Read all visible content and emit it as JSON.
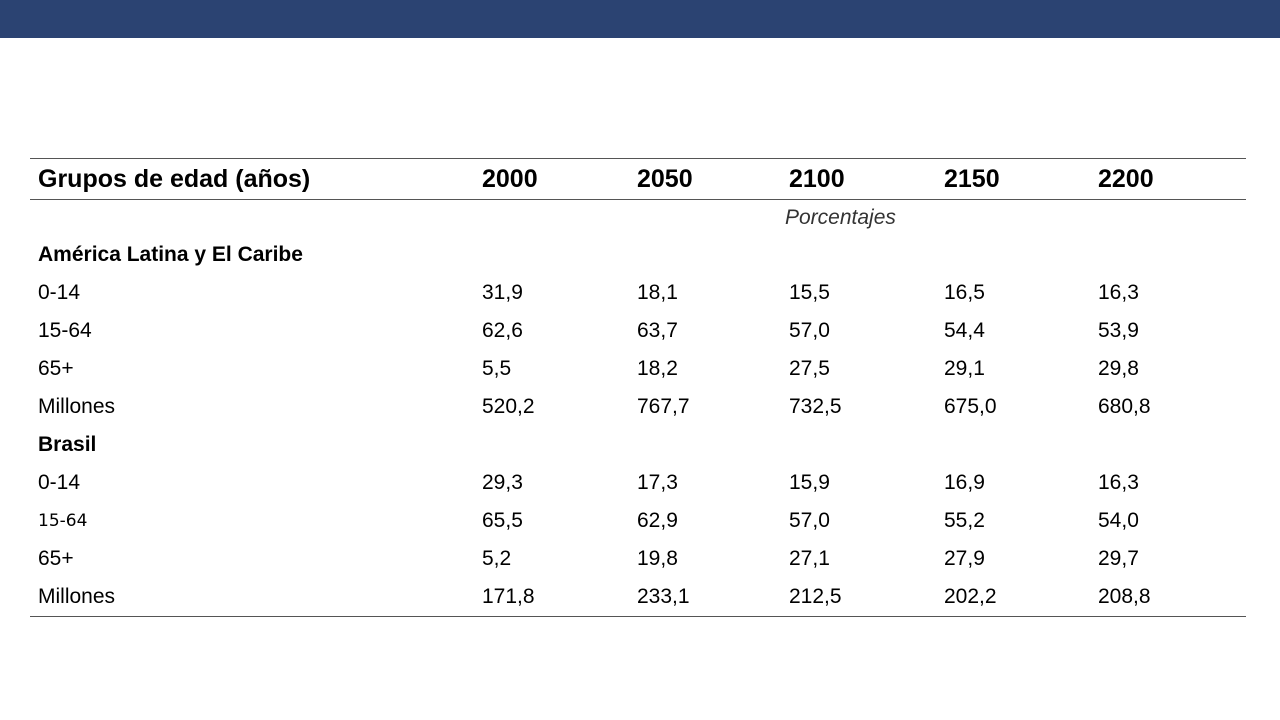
{
  "table": {
    "headers": [
      "Grupos de edad (años)",
      "2000",
      "2050",
      "2100",
      "2150",
      "2200"
    ],
    "unit": "Porcentajes",
    "sections": [
      {
        "name": "América Latina y El Caribe",
        "rows": [
          {
            "label": "0-14",
            "values": [
              "31,9",
              "18,1",
              "15,5",
              "16,5",
              "16,3"
            ]
          },
          {
            "label": "15-64",
            "values": [
              "62,6",
              "63,7",
              "57,0",
              "54,4",
              "53,9"
            ]
          },
          {
            "label": "65+",
            "values": [
              "5,5",
              "18,2",
              "27,5",
              "29,1",
              "29,8"
            ]
          },
          {
            "label": "Millones",
            "values": [
              "520,2",
              "767,7",
              "732,5",
              "675,0",
              "680,8"
            ]
          }
        ]
      },
      {
        "name": "Brasil",
        "rows": [
          {
            "label": "0-14",
            "values": [
              "29,3",
              "17,3",
              "15,9",
              "16,9",
              "16,3"
            ]
          },
          {
            "label": "15-64",
            "values": [
              "65,5",
              "62,9",
              "57,0",
              "55,2",
              "54,0"
            ]
          },
          {
            "label": "65+",
            "values": [
              "5,2",
              "19,8",
              "27,1",
              "27,9",
              "29,7"
            ]
          },
          {
            "label": "Millones",
            "values": [
              "171,8",
              "233,1",
              "212,5",
              "202,2",
              "208,8"
            ]
          }
        ]
      }
    ]
  },
  "colors": {
    "header_bar": "#2b4372"
  }
}
